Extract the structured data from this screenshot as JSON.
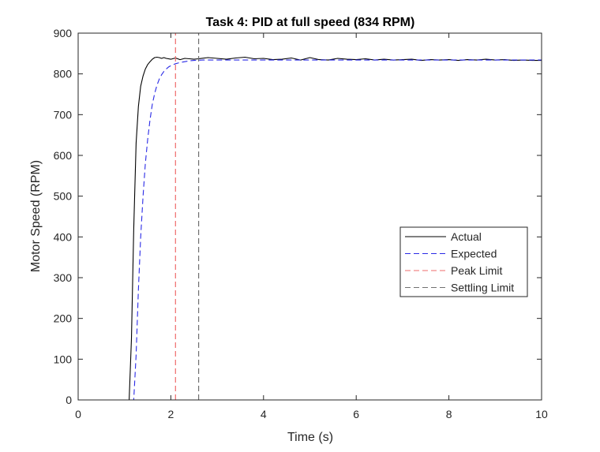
{
  "chart_data": {
    "type": "line",
    "title": "Task 4: PID at full speed (834 RPM)",
    "xlabel": "Time (s)",
    "ylabel": "Motor Speed (RPM)",
    "xlim": [
      0,
      10
    ],
    "ylim": [
      0,
      900
    ],
    "xticks": [
      0,
      2,
      4,
      6,
      8,
      10
    ],
    "yticks": [
      0,
      100,
      200,
      300,
      400,
      500,
      600,
      700,
      800,
      900
    ],
    "grid": false,
    "legend_position": "right",
    "series": [
      {
        "name": "Actual",
        "color": "#000000",
        "style": "solid",
        "x": [
          0,
          1.1,
          1.15,
          1.2,
          1.25,
          1.3,
          1.35,
          1.4,
          1.45,
          1.5,
          1.55,
          1.6,
          1.65,
          1.7,
          1.75,
          1.8,
          1.85,
          1.9,
          2.0,
          2.1,
          2.2,
          2.3,
          2.4,
          2.5,
          2.6,
          2.8,
          3.0,
          3.2,
          3.4,
          3.6,
          3.8,
          4.0,
          4.2,
          4.4,
          4.6,
          4.8,
          5.0,
          5.2,
          5.4,
          5.6,
          5.8,
          6.0,
          6.2,
          6.4,
          6.6,
          6.8,
          7.0,
          7.2,
          7.4,
          7.6,
          7.8,
          8.0,
          8.2,
          8.4,
          8.6,
          8.8,
          9.0,
          9.2,
          9.4,
          9.6,
          9.8,
          10.0
        ],
        "y": [
          0,
          0,
          150,
          420,
          630,
          720,
          770,
          795,
          812,
          823,
          830,
          836,
          840,
          841,
          840,
          838,
          840,
          838,
          836,
          839,
          835,
          838,
          837,
          836,
          837,
          840,
          838,
          836,
          839,
          841,
          837,
          838,
          835,
          836,
          839,
          834,
          840,
          835,
          834,
          838,
          836,
          835,
          837,
          834,
          836,
          834,
          835,
          836,
          833,
          835,
          834,
          835,
          833,
          835,
          834,
          836,
          834,
          835,
          833,
          834,
          833,
          833
        ]
      },
      {
        "name": "Expected",
        "color": "#2a2ae6",
        "style": "dashed",
        "x": [
          0,
          1.2,
          1.25,
          1.3,
          1.35,
          1.4,
          1.45,
          1.5,
          1.55,
          1.6,
          1.65,
          1.7,
          1.75,
          1.8,
          1.85,
          1.9,
          1.95,
          2.0,
          2.1,
          2.2,
          2.3,
          2.4,
          2.5,
          2.7,
          3.0,
          3.5,
          4.0,
          5.0,
          6.0,
          7.0,
          8.0,
          9.0,
          10.0
        ],
        "y": [
          0,
          0,
          110,
          270,
          400,
          500,
          580,
          640,
          687,
          725,
          752,
          772,
          787,
          798,
          806,
          812,
          817,
          820,
          825,
          828,
          830,
          832,
          833,
          834,
          834,
          834,
          834,
          834,
          834,
          834,
          834,
          834,
          834
        ]
      },
      {
        "name": "Peak Limit",
        "color": "#ef6b6b",
        "style": "dashed",
        "x": [
          2.1,
          2.1
        ],
        "y": [
          0,
          900
        ]
      },
      {
        "name": "Settling Limit",
        "color": "#707070",
        "style": "dashed",
        "x": [
          2.6,
          2.6
        ],
        "y": [
          0,
          900
        ]
      }
    ]
  }
}
